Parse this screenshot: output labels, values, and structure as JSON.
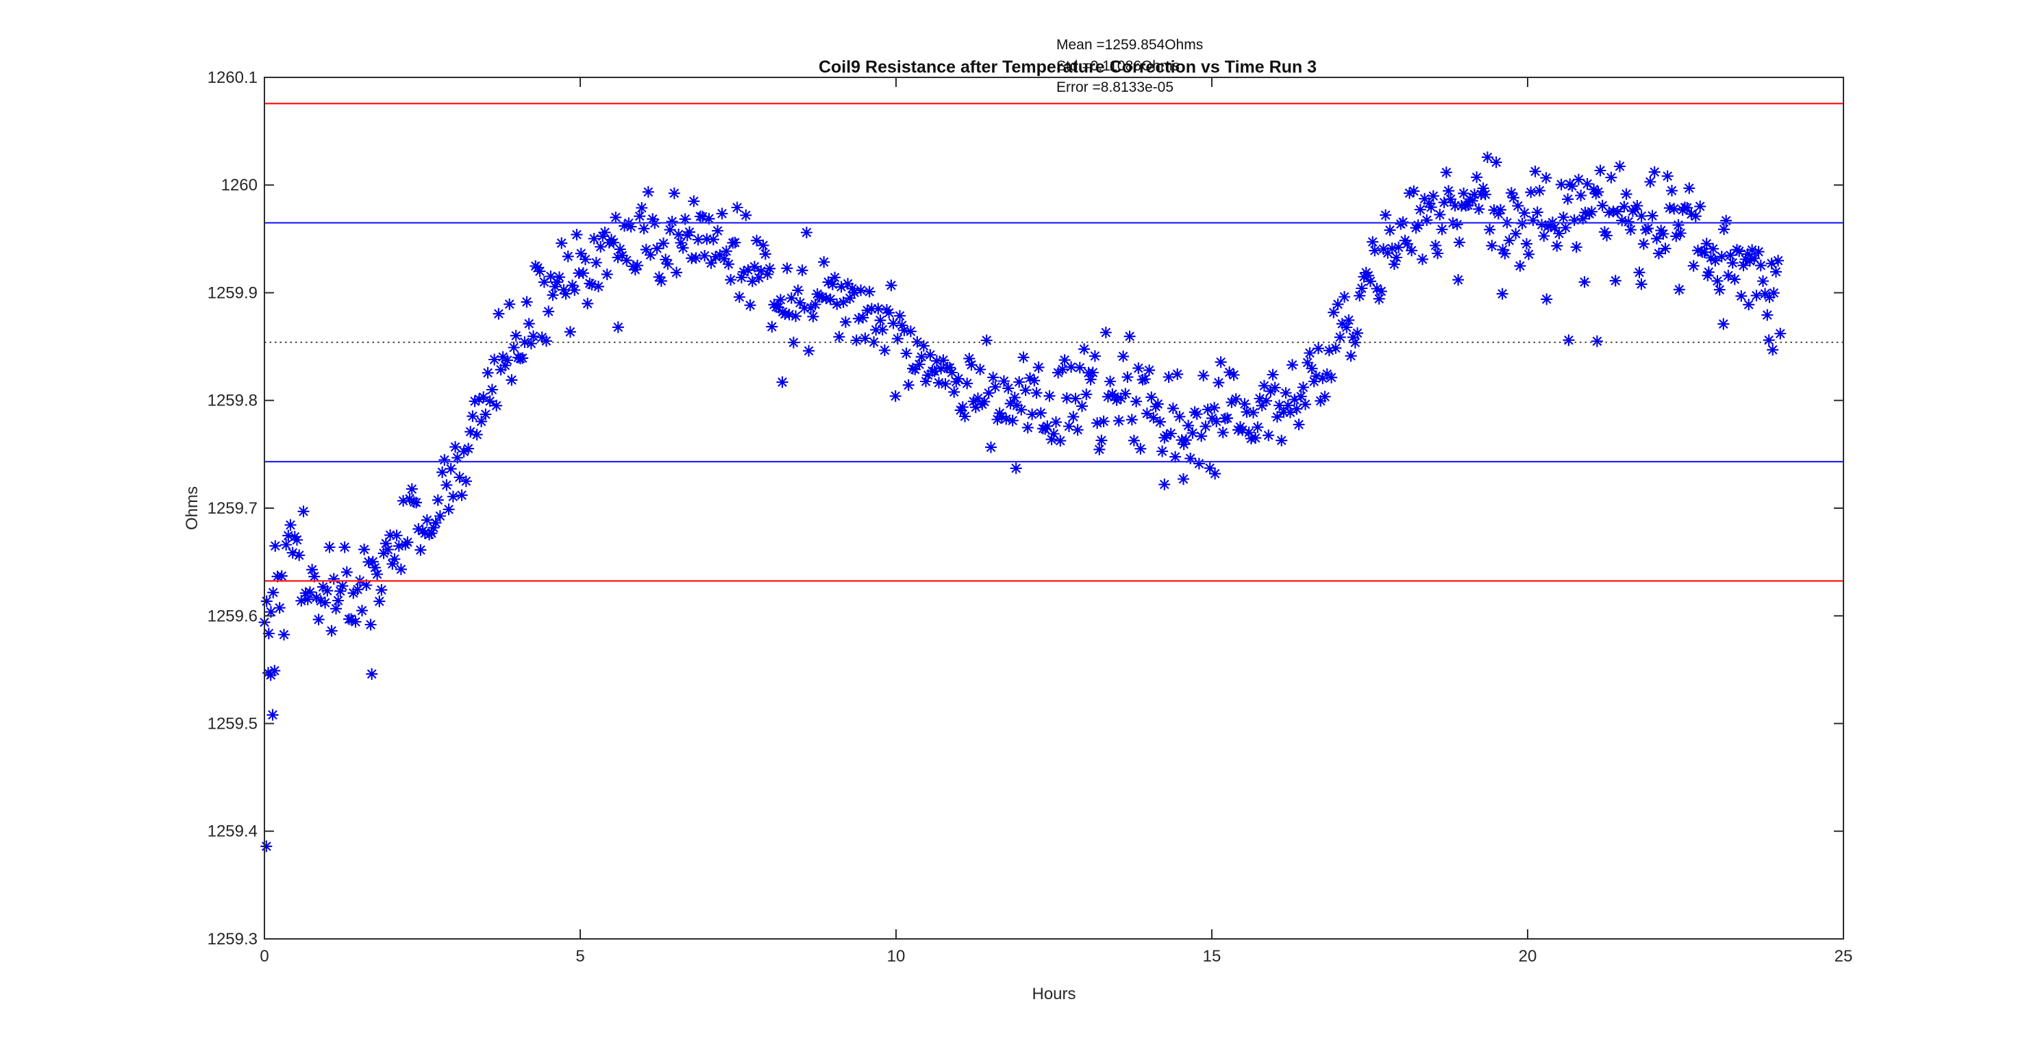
{
  "figure": {
    "title": "Coil9 Resistance after Temperature Correction vs Time Run 3",
    "xlabel": "Hours",
    "ylabel": "Ohms",
    "annotation": {
      "mean_line": "Mean =1259.854Ohms",
      "std_line": "Std =0.11086Ohms",
      "error_line": "Error =8.8133e-05"
    }
  },
  "chart_data": {
    "type": "scatter",
    "title": "Coil9 Resistance after Temperature Correction vs Time Run 3",
    "xlabel": "Hours",
    "ylabel": "Ohms",
    "xlim": [
      0,
      25
    ],
    "ylim": [
      1259.3,
      1260.1
    ],
    "grid": false,
    "legend": "none",
    "marker": "asterisk",
    "marker_color": "#0000f0",
    "marker_size": 8.5,
    "axis_color": "#2b2b2b",
    "xticks": [
      0,
      5,
      10,
      15,
      20,
      25
    ],
    "xtick_labels": [
      "0",
      "5",
      "10",
      "15",
      "20",
      "25"
    ],
    "ytick_values": [
      1259.3,
      1259.4,
      1259.5,
      1259.6,
      1259.7,
      1259.8,
      1259.9,
      1260,
      1260.1
    ],
    "ytick_labels": [
      "1259.3",
      "1259.4",
      "1259.5",
      "1259.6",
      "1259.7",
      "1259.8",
      "1259.9",
      "1260",
      "1260.1"
    ],
    "stats": {
      "mean": 1259.854,
      "std": 0.11086,
      "error": 8.8133e-05
    },
    "reference_lines": [
      {
        "meaning": "mean+2std",
        "value": 1260.0757,
        "color": "#ff2020",
        "style": "solid",
        "width": 2.4
      },
      {
        "meaning": "mean+1std",
        "value": 1259.9649,
        "color": "#2626ff",
        "style": "solid",
        "width": 2.2
      },
      {
        "meaning": "mean",
        "value": 1259.854,
        "color": "#383838",
        "style": "dotted",
        "width": 1.8
      },
      {
        "meaning": "mean-1std",
        "value": 1259.7432,
        "color": "#2626ff",
        "style": "solid",
        "width": 2.2
      },
      {
        "meaning": "mean-2std",
        "value": 1259.6324,
        "color": "#ff2020",
        "style": "solid",
        "width": 2.4
      }
    ],
    "series_generation": {
      "n_points": 700,
      "x_start": 0,
      "x_end": 24,
      "noise_sd": 0.022,
      "seed": 42,
      "trend_anchors": [
        [
          0.0,
          1259.615
        ],
        [
          0.3,
          1259.655
        ],
        [
          0.6,
          1259.645
        ],
        [
          0.9,
          1259.62
        ],
        [
          1.2,
          1259.615
        ],
        [
          1.5,
          1259.63
        ],
        [
          1.8,
          1259.645
        ],
        [
          2.1,
          1259.66
        ],
        [
          2.4,
          1259.685
        ],
        [
          2.7,
          1259.7
        ],
        [
          3.0,
          1259.725
        ],
        [
          3.3,
          1259.77
        ],
        [
          3.6,
          1259.815
        ],
        [
          3.9,
          1259.85
        ],
        [
          4.2,
          1259.875
        ],
        [
          4.6,
          1259.9
        ],
        [
          5.0,
          1259.92
        ],
        [
          5.5,
          1259.935
        ],
        [
          6.0,
          1259.945
        ],
        [
          6.5,
          1259.95
        ],
        [
          7.0,
          1259.945
        ],
        [
          7.5,
          1259.935
        ],
        [
          8.0,
          1259.915
        ],
        [
          8.5,
          1259.9
        ],
        [
          9.0,
          1259.89
        ],
        [
          9.5,
          1259.885
        ],
        [
          10.0,
          1259.86
        ],
        [
          10.5,
          1259.84
        ],
        [
          11.0,
          1259.825
        ],
        [
          11.5,
          1259.81
        ],
        [
          12.0,
          1259.8
        ],
        [
          12.5,
          1259.795
        ],
        [
          13.0,
          1259.805
        ],
        [
          13.5,
          1259.8
        ],
        [
          14.0,
          1259.79
        ],
        [
          14.5,
          1259.78
        ],
        [
          15.0,
          1259.785
        ],
        [
          15.5,
          1259.79
        ],
        [
          16.0,
          1259.79
        ],
        [
          16.3,
          1259.8
        ],
        [
          16.7,
          1259.825
        ],
        [
          17.0,
          1259.855
        ],
        [
          17.4,
          1259.9
        ],
        [
          17.8,
          1259.935
        ],
        [
          18.2,
          1259.96
        ],
        [
          18.6,
          1259.975
        ],
        [
          19.0,
          1259.985
        ],
        [
          19.4,
          1259.975
        ],
        [
          19.8,
          1259.965
        ],
        [
          20.2,
          1259.97
        ],
        [
          20.6,
          1259.985
        ],
        [
          21.0,
          1259.99
        ],
        [
          21.4,
          1259.975
        ],
        [
          21.8,
          1259.965
        ],
        [
          22.2,
          1259.96
        ],
        [
          22.6,
          1259.95
        ],
        [
          23.0,
          1259.935
        ],
        [
          23.4,
          1259.925
        ],
        [
          23.8,
          1259.905
        ],
        [
          24.0,
          1259.89
        ]
      ]
    },
    "outlier_points": [
      [
        0.03,
        1259.386
      ],
      [
        0.06,
        1259.547
      ],
      [
        0.1,
        1259.545
      ],
      [
        0.16,
        1259.549
      ],
      [
        0.13,
        1259.508
      ],
      [
        1.7,
        1259.546
      ],
      [
        5.6,
        1259.868
      ],
      [
        8.2,
        1259.817
      ],
      [
        11.9,
        1259.737
      ],
      [
        14.25,
        1259.722
      ],
      [
        14.55,
        1259.727
      ],
      [
        15.05,
        1259.732
      ],
      [
        18.9,
        1259.912
      ],
      [
        19.6,
        1259.899
      ],
      [
        20.3,
        1259.894
      ],
      [
        20.65,
        1259.856
      ],
      [
        20.9,
        1259.91
      ],
      [
        21.1,
        1259.855
      ],
      [
        21.8,
        1259.908
      ],
      [
        22.4,
        1259.903
      ],
      [
        22.85,
        1259.916
      ],
      [
        23.1,
        1259.871
      ],
      [
        23.5,
        1259.889
      ],
      [
        23.82,
        1259.856
      ],
      [
        23.88,
        1259.847
      ]
    ]
  }
}
